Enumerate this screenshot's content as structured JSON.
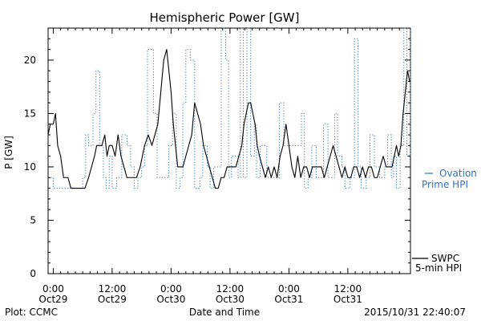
{
  "chart_data": {
    "type": "line",
    "title": "Hemispheric Power [GW]",
    "xlabel": "Date and Time",
    "ylabel": "P [GW]",
    "ylim": [
      0,
      23
    ],
    "yticks": [
      0,
      5,
      10,
      15,
      20
    ],
    "x_unit": "hours since Oct29 0:00",
    "xlim": [
      -0.7,
      48.5
    ],
    "xticks": [
      {
        "x": 0,
        "label1": "0:00",
        "label2": "Oct29"
      },
      {
        "x": 8,
        "label1": "12:00",
        "label2": "Oct29"
      },
      {
        "x": 16,
        "label1": "0:00",
        "label2": "Oct30"
      },
      {
        "x": 24,
        "label1": "12:00",
        "label2": "Oct30"
      },
      {
        "x": 32,
        "label1": "0:00",
        "label2": "Oct31"
      },
      {
        "x": 40,
        "label1": "12:00",
        "label2": "Oct31"
      }
    ],
    "grid": false,
    "series": [
      {
        "name": "Ovation Prime HPI",
        "legend_line1": "Ovation",
        "legend_line2": "Prime HPI",
        "color": "#2f73c8",
        "style": "dotted-step",
        "x": [
          -0.7,
          0.0,
          0.7,
          3.2,
          4.0,
          4.4,
          4.8,
          5.4,
          5.8,
          6.3,
          6.8,
          7.2,
          7.6,
          8.0,
          8.6,
          9.3,
          10.0,
          10.5,
          11.0,
          11.5,
          12.0,
          12.4,
          12.8,
          13.6,
          14.1,
          14.6,
          15.1,
          15.7,
          16.2,
          16.7,
          17.2,
          17.6,
          18.0,
          18.6,
          19.2,
          19.9,
          20.3,
          20.9,
          21.3,
          21.8,
          22.4,
          22.8,
          23.4,
          23.8,
          24.2,
          25.1,
          25.4,
          25.8,
          26.3,
          26.8,
          27.3,
          27.6,
          28.1,
          29.0,
          29.7,
          30.2,
          30.7,
          31.3,
          32.0,
          33.0,
          33.7,
          34.1,
          34.6,
          35.1,
          35.7,
          36.2,
          36.7,
          37.3,
          37.8,
          38.2,
          38.6,
          39.2,
          39.6,
          40.3,
          40.9,
          41.4,
          41.8,
          42.5,
          43.0,
          43.6,
          44.3,
          45.0,
          45.4,
          45.9,
          46.2,
          46.6,
          47.1,
          47.6,
          48.0,
          48.5
        ],
        "y": [
          9,
          8,
          8,
          8,
          9,
          13,
          12,
          15,
          19,
          12,
          9,
          8,
          11,
          8,
          9,
          13,
          12,
          10,
          8,
          9,
          10,
          12,
          21,
          15,
          9,
          9,
          9,
          12,
          15,
          8,
          9,
          16,
          21,
          20,
          8,
          9,
          12,
          10,
          8,
          10,
          10,
          23,
          20,
          9,
          11,
          9,
          23,
          9,
          23,
          11,
          14,
          9,
          12,
          9,
          9,
          9,
          16,
          12,
          12,
          12,
          15,
          8,
          9,
          12,
          9,
          9,
          14,
          9,
          9,
          15,
          11,
          10,
          8,
          9,
          22,
          10,
          8,
          9,
          13,
          10,
          9,
          10,
          13,
          9,
          11,
          8,
          12,
          23,
          11,
          23
        ]
      },
      {
        "name": "SWPC 5-min HPI",
        "legend_line1": "SWPC",
        "legend_line2": "5-min HPI",
        "color": "#000000",
        "style": "solid",
        "x": [
          -0.7,
          -0.4,
          0.0,
          0.3,
          0.6,
          1.0,
          1.4,
          2.0,
          2.4,
          3.0,
          3.6,
          4.3,
          4.8,
          5.2,
          5.6,
          5.9,
          6.2,
          6.6,
          7.0,
          7.3,
          7.6,
          8.0,
          8.4,
          8.8,
          9.2,
          9.6,
          10.0,
          10.4,
          10.8,
          11.3,
          11.8,
          12.4,
          12.9,
          13.4,
          13.8,
          14.2,
          14.6,
          15.0,
          15.4,
          15.7,
          16.0,
          16.3,
          16.6,
          16.9,
          17.2,
          17.6,
          18.0,
          18.4,
          18.8,
          19.2,
          19.6,
          20.0,
          20.4,
          20.8,
          21.2,
          21.6,
          22.0,
          22.4,
          22.8,
          23.2,
          23.6,
          24.0,
          24.4,
          24.8,
          25.2,
          25.6,
          25.9,
          26.2,
          26.5,
          26.8,
          27.1,
          27.4,
          27.7,
          28.0,
          28.4,
          28.8,
          29.2,
          29.6,
          30.0,
          30.4,
          30.8,
          31.2,
          31.6,
          32.0,
          32.4,
          32.8,
          33.2,
          33.6,
          34.0,
          34.4,
          34.8,
          35.2,
          35.6,
          36.0,
          36.4,
          36.8,
          37.2,
          37.6,
          38.0,
          38.4,
          38.8,
          39.2,
          39.6,
          40.0,
          40.4,
          40.8,
          41.2,
          41.6,
          42.0,
          42.4,
          42.8,
          43.2,
          43.6,
          44.0,
          44.4,
          44.8,
          45.2,
          45.6,
          46.0,
          46.3,
          46.6,
          46.9,
          47.2,
          47.5,
          47.8,
          48.1,
          48.4
        ],
        "y": [
          13,
          14,
          14,
          15,
          12,
          11,
          9,
          9,
          8,
          8,
          8,
          8,
          9,
          10,
          11,
          12,
          12,
          12,
          13,
          11,
          12,
          12,
          11,
          13,
          11,
          10,
          9,
          9,
          9,
          9,
          10,
          12,
          13,
          12,
          13,
          14,
          17,
          20,
          21,
          19,
          17,
          14,
          12,
          10,
          10,
          10,
          11,
          12,
          13,
          16,
          15,
          14,
          12,
          11,
          10,
          9,
          8,
          8,
          9,
          9,
          10,
          10,
          10,
          10,
          11,
          12,
          14,
          15,
          16,
          16,
          15,
          14,
          12,
          11,
          10,
          9,
          10,
          9,
          10,
          9,
          11,
          12,
          14,
          12,
          10,
          9,
          11,
          9,
          10,
          10,
          9,
          10,
          10,
          10,
          10,
          9,
          10,
          11,
          12,
          11,
          10,
          9,
          10,
          9,
          9,
          10,
          10,
          9,
          10,
          9,
          10,
          10,
          9,
          9,
          10,
          11,
          10,
          10,
          10,
          11,
          12,
          11,
          12,
          15,
          17,
          19,
          18
        ]
      }
    ]
  },
  "footer": {
    "left": "Plot: CCMC",
    "timestamp": "2015/10/31 22:40:07"
  }
}
